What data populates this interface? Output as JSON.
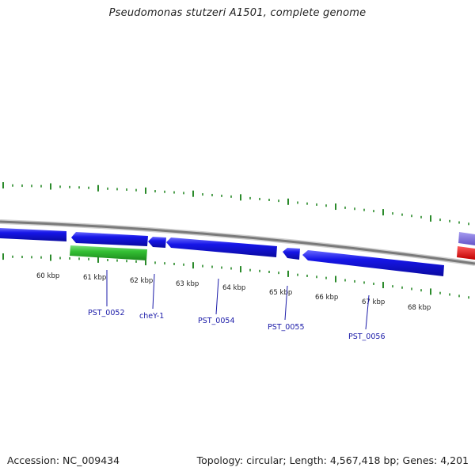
{
  "title": "Pseudomonas stutzeri A1501, complete genome",
  "footer": {
    "accession": "Accession: NC_009434",
    "summary": "Topology: circular; Length: 4,567,418 bp; Genes: 4,201"
  },
  "colors": {
    "backbone": "#808080",
    "gene_reverse": "#1010e0",
    "gene_forward": "#30c030",
    "gene_other_purple": "#7a6fd8",
    "gene_other_red": "#f01010",
    "tick": "#2a8a2a",
    "gene_label": "#1a1aa8"
  },
  "scale": {
    "kbp_labels": [
      "60 kbp",
      "61 kbp",
      "62 kbp",
      "63 kbp",
      "64 kbp",
      "65 kbp",
      "66 kbp",
      "67 kbp",
      "68 kbp"
    ]
  },
  "genes": [
    {
      "id": "pre-a",
      "strand": "reverse",
      "color": "#1010e0"
    },
    {
      "id": "PST_0052-seg",
      "strand": "reverse",
      "color": "#1010e0"
    },
    {
      "id": "cheY-1",
      "strand": "forward",
      "color": "#30c030"
    },
    {
      "id": "mini-a",
      "strand": "reverse",
      "color": "#1010e0"
    },
    {
      "id": "PST_0054",
      "strand": "reverse",
      "color": "#1010e0"
    },
    {
      "id": "mini-b",
      "strand": "reverse",
      "color": "#1010e0"
    },
    {
      "id": "PST_0056-seg",
      "strand": "reverse",
      "color": "#1010e0"
    },
    {
      "id": "edge-purple",
      "strand": "other",
      "color": "#7a6fd8"
    },
    {
      "id": "edge-red",
      "strand": "other",
      "color": "#f01010"
    }
  ],
  "gene_labels": [
    "PST_0052",
    "cheY-1",
    "PST_0054",
    "PST_0055",
    "PST_0056"
  ]
}
